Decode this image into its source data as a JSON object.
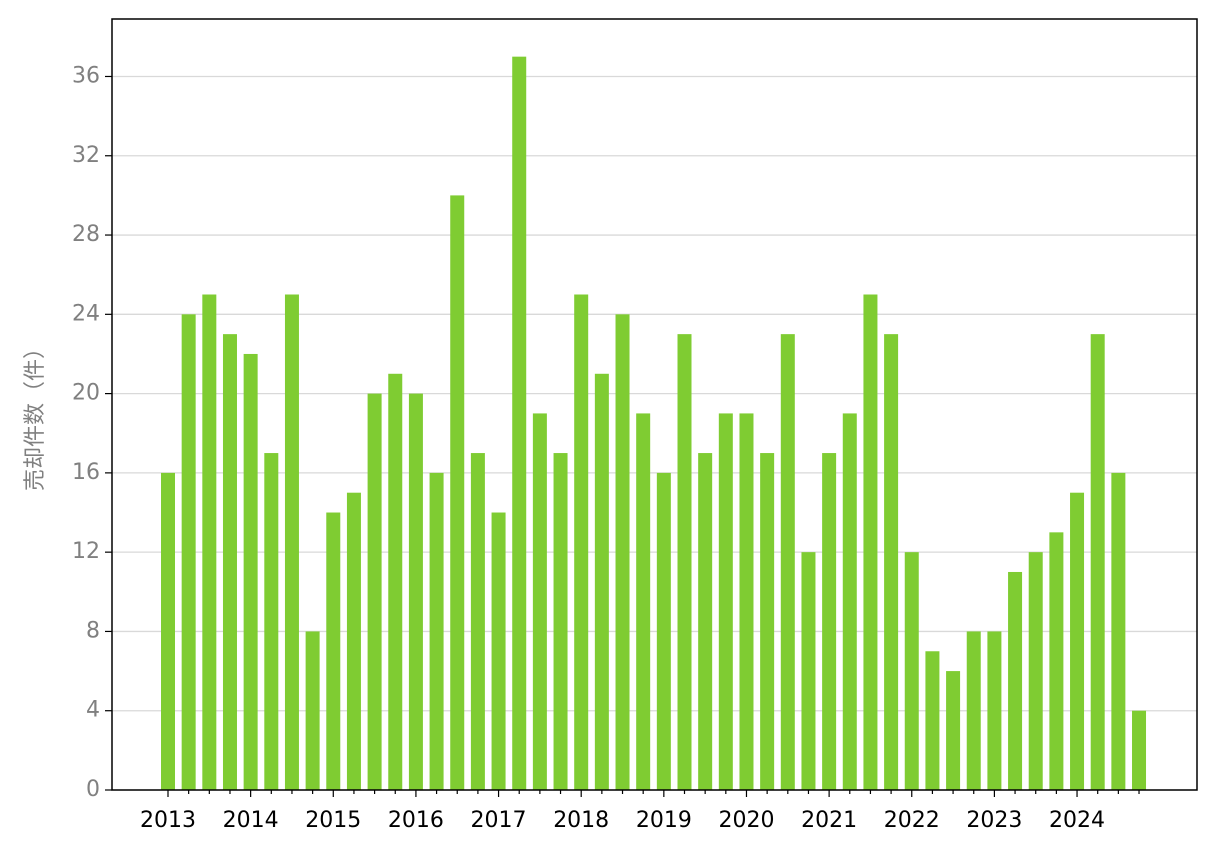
{
  "chart_data": {
    "type": "bar",
    "y_label": "売却件数（件）",
    "categories": [
      "2013",
      null,
      null,
      null,
      "2014",
      null,
      null,
      null,
      "2015",
      null,
      null,
      null,
      "2016",
      null,
      null,
      null,
      "2017",
      null,
      null,
      null,
      "2018",
      null,
      null,
      null,
      "2019",
      null,
      null,
      null,
      "2020",
      null,
      null,
      null,
      "2021",
      null,
      null,
      null,
      "2022",
      null,
      null,
      null,
      "2023",
      null,
      null,
      null,
      "2024",
      null,
      null,
      null
    ],
    "values": [
      16,
      24,
      25,
      23,
      22,
      17,
      25,
      8,
      14,
      15,
      20,
      21,
      20,
      16,
      30,
      17,
      14,
      37,
      19,
      17,
      25,
      21,
      24,
      19,
      16,
      23,
      17,
      19,
      19,
      17,
      23,
      12,
      17,
      19,
      25,
      23,
      12,
      7,
      6,
      8,
      8,
      11,
      12,
      13,
      15,
      23,
      16,
      4
    ],
    "color": "#7fcc32",
    "ylim": [
      0,
      38.9
    ],
    "yticks": [
      0,
      4,
      8,
      12,
      16,
      20,
      24,
      28,
      32,
      36
    ],
    "grid": true
  }
}
